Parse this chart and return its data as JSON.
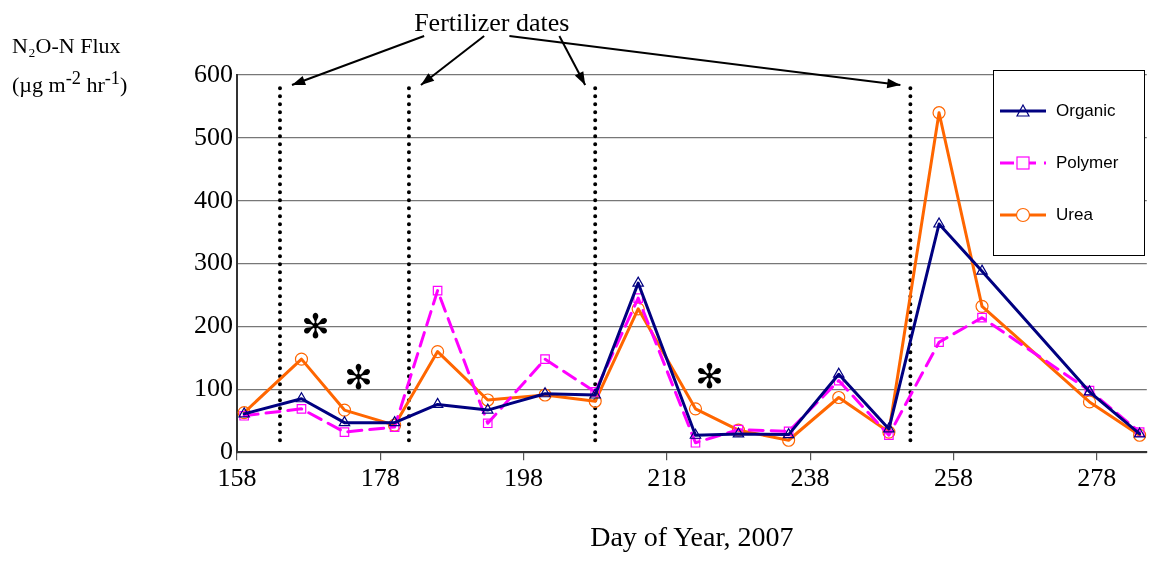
{
  "chart_data": {
    "type": "line",
    "ylabel": "N₂O-N Flux (µg m$^{-2}$ hr$^{-1}$)",
    "xlabel": "Day of Year, 2007",
    "x": [
      159,
      167,
      173,
      180,
      186,
      193,
      201,
      208,
      214,
      222,
      228,
      235,
      242,
      249,
      256,
      262,
      277,
      284
    ],
    "series": [
      {
        "name": "Organic",
        "color": "#000080",
        "marker": "triangle",
        "line_style": "solid",
        "values": [
          61,
          85,
          47,
          47,
          76,
          67,
          93,
          91,
          269,
          27,
          29,
          28,
          124,
          37,
          363,
          288,
          96,
          29
        ]
      },
      {
        "name": "Polymer",
        "color": "#ff00ff",
        "marker": "square",
        "line_style": "dashed",
        "values": [
          58,
          69,
          32,
          40,
          257,
          46,
          148,
          96,
          245,
          15,
          36,
          33,
          114,
          27,
          175,
          214,
          98,
          32
        ]
      },
      {
        "name": "Urea",
        "color": "#ff6600",
        "marker": "circle",
        "line_style": "solid",
        "values": [
          63,
          148,
          67,
          43,
          160,
          83,
          91,
          81,
          228,
          69,
          35,
          19,
          87,
          32,
          540,
          232,
          80,
          27
        ]
      }
    ],
    "xlim": [
      158,
      285
    ],
    "xticks": [
      158,
      178,
      198,
      218,
      238,
      258,
      278
    ],
    "ylim": [
      0,
      600
    ],
    "yticks": [
      0,
      100,
      200,
      300,
      400,
      500,
      600
    ],
    "grid": "y",
    "legend": "top right",
    "ref_lines": [
      {
        "axis": "x",
        "value": 164,
        "color": "#000000",
        "line_style": "dotted"
      },
      {
        "axis": "x",
        "value": 182,
        "color": "#000000",
        "line_style": "dotted"
      },
      {
        "axis": "x",
        "value": 208,
        "color": "#000000",
        "line_style": "dotted"
      },
      {
        "axis": "x",
        "value": 252,
        "color": "#000000",
        "line_style": "dotted"
      }
    ],
    "annotations": [
      "Fertilizer dates",
      {
        "text": "✻",
        "x": 167,
        "y": 148
      },
      {
        "text": "✻",
        "x": 173,
        "y": 67
      },
      {
        "text": "✻",
        "x": 222,
        "y": 69
      }
    ]
  }
}
